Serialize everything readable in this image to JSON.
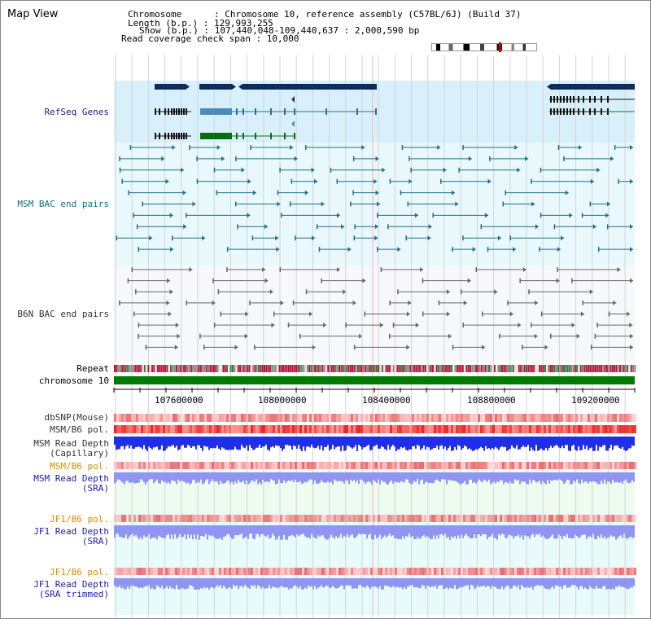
{
  "title": "Map View",
  "header": {
    "chromosome_line": "Chromosome      : Chromosome 10, reference assembly (C57BL/6J) (Build 37)",
    "length_line": "Length (b.p.) : 129,993,255",
    "show_line": "Show (b.p.) : 107,440,048-109,440,637 : 2,000,590 bp",
    "coverage_line": "Read coverage check span : 10,000"
  },
  "tracks": {
    "refseq": "RefSeq Genes",
    "msm_bac": "MSM BAC end pairs",
    "b6n_bac": "B6N BAC end pairs",
    "repeat": "Repeat",
    "chromosome": "chromosome 10",
    "dbsnp": "dbSNP(Mouse)",
    "msm_pol": "MSM/B6 pol.",
    "msm_depth_cap_1": "MSM Read Depth",
    "msm_depth_cap_2": "(Capillary)",
    "msm_pol_sra": "MSM/B6 pol.",
    "msm_depth_sra_1": "MSM Read Depth",
    "msm_depth_sra_2": "(SRA)",
    "jf1_pol_1": "JF1/B6 pol.",
    "jf1_depth_1": "JF1 Read Depth",
    "jf1_depth_1b": "(SRA)",
    "jf1_pol_2": "JF1/B6 pol.",
    "jf1_depth_2": "JF1 Read Depth",
    "jf1_depth_2b": "(SRA trimmed)"
  },
  "ruler": {
    "ticks": [
      "107600000",
      "108000000",
      "108400000",
      "108800000",
      "109200000"
    ]
  },
  "colors": {
    "gene_navy": "#0d2b5c",
    "gene_blue": "#4a8db8",
    "gene_green": "#0b6b12",
    "bac_teal": "#1f6f8b",
    "bac_gray": "#666666",
    "refseq_bg": "#d8f0fb",
    "msm_bg": "#e8f8fc",
    "b6n_bg": "#f6f8fb",
    "chromosome_green": "#007a00",
    "depth_blue": "#1f2ee8",
    "depth_light": "#8f96f2",
    "pol_red": "#e83030"
  }
}
